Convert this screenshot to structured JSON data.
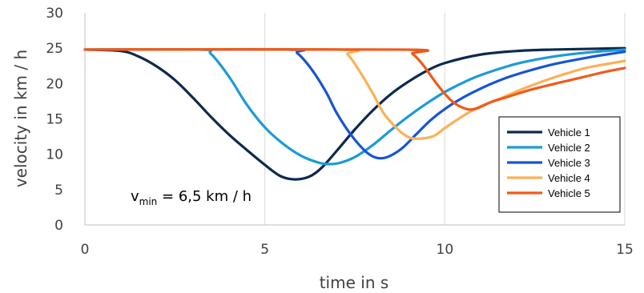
{
  "chart_data": {
    "type": "line",
    "xlabel": "time in s",
    "ylabel": "velocity in km / h",
    "xlim": [
      0,
      15
    ],
    "ylim": [
      0,
      30
    ],
    "xticks": [
      0,
      5,
      10,
      15
    ],
    "yticks": [
      0,
      5,
      10,
      15,
      20,
      25,
      30
    ],
    "grid": "vertical",
    "legend_position": "lower-right",
    "annotation": {
      "base": "v",
      "sub": "min",
      "text": " = 6,5 km / h"
    },
    "series": [
      {
        "name": "Vehicle 1",
        "color": "#0d2a4e",
        "points": [
          [
            0,
            24.8
          ],
          [
            1,
            24.6
          ],
          [
            1.5,
            23.8
          ],
          [
            2,
            22.4
          ],
          [
            2.5,
            20.5
          ],
          [
            3,
            18.0
          ],
          [
            3.5,
            15.3
          ],
          [
            4,
            12.8
          ],
          [
            4.5,
            10.6
          ],
          [
            5,
            8.5
          ],
          [
            5.4,
            7.0
          ],
          [
            5.7,
            6.5
          ],
          [
            6.0,
            6.5
          ],
          [
            6.3,
            7.0
          ],
          [
            6.6,
            8.2
          ],
          [
            7,
            10.5
          ],
          [
            7.5,
            13.5
          ],
          [
            8,
            16.2
          ],
          [
            8.5,
            18.5
          ],
          [
            9,
            20.3
          ],
          [
            9.5,
            21.8
          ],
          [
            10,
            22.9
          ],
          [
            11,
            24.1
          ],
          [
            12,
            24.6
          ],
          [
            13,
            24.8
          ],
          [
            14,
            24.9
          ],
          [
            15,
            25.0
          ]
        ]
      },
      {
        "name": "Vehicle 2",
        "color": "#1a9bd7",
        "points": [
          [
            0,
            24.8
          ],
          [
            3.2,
            24.8
          ],
          [
            3.5,
            24.2
          ],
          [
            4,
            21.0
          ],
          [
            4.5,
            17.0
          ],
          [
            5,
            13.8
          ],
          [
            5.5,
            11.5
          ],
          [
            6,
            9.8
          ],
          [
            6.5,
            8.8
          ],
          [
            6.8,
            8.6
          ],
          [
            7.1,
            8.8
          ],
          [
            7.5,
            9.6
          ],
          [
            8,
            11.3
          ],
          [
            8.5,
            13.4
          ],
          [
            9,
            15.4
          ],
          [
            9.5,
            17.2
          ],
          [
            10,
            18.8
          ],
          [
            10.5,
            20.1
          ],
          [
            11,
            21.2
          ],
          [
            12,
            22.8
          ],
          [
            13,
            23.8
          ],
          [
            14,
            24.4
          ],
          [
            15,
            24.8
          ]
        ]
      },
      {
        "name": "Vehicle 3",
        "color": "#1655d4",
        "points": [
          [
            0,
            24.8
          ],
          [
            5.6,
            24.8
          ],
          [
            5.9,
            24.3
          ],
          [
            6.3,
            22.0
          ],
          [
            6.7,
            18.8
          ],
          [
            7,
            15.8
          ],
          [
            7.4,
            12.7
          ],
          [
            7.8,
            10.4
          ],
          [
            8.1,
            9.5
          ],
          [
            8.4,
            9.6
          ],
          [
            8.8,
            10.8
          ],
          [
            9.2,
            12.8
          ],
          [
            9.6,
            14.8
          ],
          [
            10,
            16.4
          ],
          [
            10.5,
            18.0
          ],
          [
            11,
            19.3
          ],
          [
            11.5,
            20.4
          ],
          [
            12,
            21.3
          ],
          [
            13,
            22.7
          ],
          [
            14,
            23.7
          ],
          [
            15,
            24.5
          ]
        ]
      },
      {
        "name": "Vehicle 4",
        "color": "#fbb157",
        "points": [
          [
            0,
            24.8
          ],
          [
            7,
            24.8
          ],
          [
            7.3,
            24.1
          ],
          [
            7.6,
            22.0
          ],
          [
            8,
            18.6
          ],
          [
            8.3,
            15.8
          ],
          [
            8.7,
            13.5
          ],
          [
            9,
            12.4
          ],
          [
            9.3,
            12.2
          ],
          [
            9.7,
            12.6
          ],
          [
            10,
            13.7
          ],
          [
            10.5,
            15.4
          ],
          [
            11,
            16.8
          ],
          [
            11.5,
            17.8
          ],
          [
            12,
            18.9
          ],
          [
            12.5,
            19.9
          ],
          [
            13,
            20.8
          ],
          [
            13.5,
            21.6
          ],
          [
            14,
            22.3
          ],
          [
            15,
            23.2
          ]
        ]
      },
      {
        "name": "Vehicle 5",
        "color": "#f05a1a",
        "points": [
          [
            0,
            24.8
          ],
          [
            8.8,
            24.8
          ],
          [
            9.1,
            24.2
          ],
          [
            9.4,
            22.6
          ],
          [
            9.8,
            19.8
          ],
          [
            10.2,
            17.5
          ],
          [
            10.6,
            16.4
          ],
          [
            10.9,
            16.5
          ],
          [
            11.3,
            17.4
          ],
          [
            11.8,
            18.2
          ],
          [
            12.3,
            19.0
          ],
          [
            13,
            19.9
          ],
          [
            13.5,
            20.5
          ],
          [
            14,
            21.1
          ],
          [
            14.5,
            21.7
          ],
          [
            15,
            22.2
          ]
        ]
      }
    ]
  }
}
